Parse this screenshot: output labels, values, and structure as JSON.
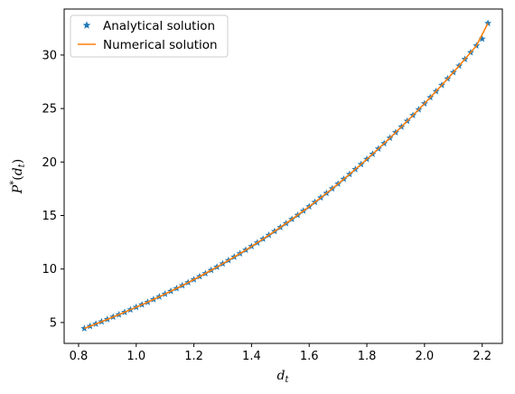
{
  "chart_data": {
    "type": "line",
    "title": "",
    "xlabel": "d_t",
    "ylabel": "P*(d_t)",
    "xlabel_parts": {
      "base": "d",
      "sub": "t"
    },
    "ylabel_parts": {
      "base": "P",
      "sup": "*",
      "open": "(",
      "arg_base": "d",
      "arg_sub": "t",
      "close": ")"
    },
    "xlim": [
      0.75,
      2.27
    ],
    "ylim": [
      3.05,
      34.3
    ],
    "xticks": [
      0.8,
      1.0,
      1.2,
      1.4,
      1.6,
      1.8,
      2.0,
      2.2
    ],
    "yticks": [
      5,
      10,
      15,
      20,
      25,
      30
    ],
    "xtick_labels": [
      "0.8",
      "1.0",
      "1.2",
      "1.4",
      "1.6",
      "1.8",
      "2.0",
      "2.2"
    ],
    "ytick_labels": [
      "5",
      "10",
      "15",
      "20",
      "25",
      "30"
    ],
    "grid": false,
    "legend_position": "upper-left",
    "series": [
      {
        "name": "Analytical solution",
        "marker": "star",
        "color": "#1f77b4",
        "x": [
          0.82,
          0.84,
          0.86,
          0.88,
          0.9,
          0.92,
          0.94,
          0.96,
          0.98,
          1.0,
          1.02,
          1.04,
          1.06,
          1.08,
          1.1,
          1.12,
          1.14,
          1.16,
          1.18,
          1.2,
          1.22,
          1.24,
          1.26,
          1.28,
          1.3,
          1.32,
          1.34,
          1.36,
          1.38,
          1.4,
          1.42,
          1.44,
          1.46,
          1.48,
          1.5,
          1.52,
          1.54,
          1.56,
          1.58,
          1.6,
          1.62,
          1.64,
          1.66,
          1.68,
          1.7,
          1.72,
          1.74,
          1.76,
          1.78,
          1.8,
          1.82,
          1.84,
          1.86,
          1.88,
          1.9,
          1.92,
          1.94,
          1.96,
          1.98,
          2.0,
          2.02,
          2.04,
          2.06,
          2.08,
          2.1,
          2.12,
          2.14,
          2.16,
          2.18,
          2.2,
          2.22
        ],
        "y": [
          4.45,
          4.66,
          4.87,
          5.08,
          5.3,
          5.52,
          5.74,
          5.97,
          6.2,
          6.43,
          6.67,
          6.91,
          7.16,
          7.41,
          7.67,
          7.93,
          8.19,
          8.46,
          8.74,
          9.02,
          9.3,
          9.59,
          9.89,
          10.19,
          10.5,
          10.81,
          11.13,
          11.45,
          11.78,
          12.12,
          12.46,
          12.81,
          13.17,
          13.53,
          13.9,
          14.27,
          14.66,
          15.04,
          15.44,
          15.84,
          16.25,
          16.67,
          17.09,
          17.52,
          17.96,
          18.41,
          18.86,
          19.32,
          19.79,
          20.27,
          20.75,
          21.24,
          21.74,
          22.25,
          22.77,
          23.29,
          23.83,
          24.37,
          24.91,
          25.47,
          26.04,
          26.61,
          27.19,
          27.79,
          28.38,
          28.99,
          29.61,
          30.24,
          30.87,
          31.51,
          32.97
        ]
      },
      {
        "name": "Numerical solution",
        "marker": "line",
        "color": "#ff7f0e",
        "x": [
          0.82,
          0.86,
          0.9,
          0.94,
          0.98,
          1.02,
          1.06,
          1.1,
          1.14,
          1.18,
          1.22,
          1.26,
          1.3,
          1.34,
          1.38,
          1.42,
          1.46,
          1.5,
          1.54,
          1.58,
          1.62,
          1.66,
          1.7,
          1.74,
          1.78,
          1.82,
          1.86,
          1.9,
          1.94,
          1.98,
          2.02,
          2.06,
          2.1,
          2.14,
          2.18,
          2.22
        ],
        "y": [
          4.45,
          4.87,
          5.3,
          5.74,
          6.2,
          6.67,
          7.16,
          7.67,
          8.19,
          8.74,
          9.3,
          9.89,
          10.5,
          11.13,
          11.78,
          12.46,
          13.17,
          13.9,
          14.66,
          15.44,
          16.25,
          17.09,
          17.96,
          18.86,
          19.79,
          20.75,
          21.74,
          22.77,
          23.83,
          24.91,
          26.04,
          27.19,
          28.38,
          29.61,
          30.87,
          32.97
        ]
      }
    ]
  }
}
